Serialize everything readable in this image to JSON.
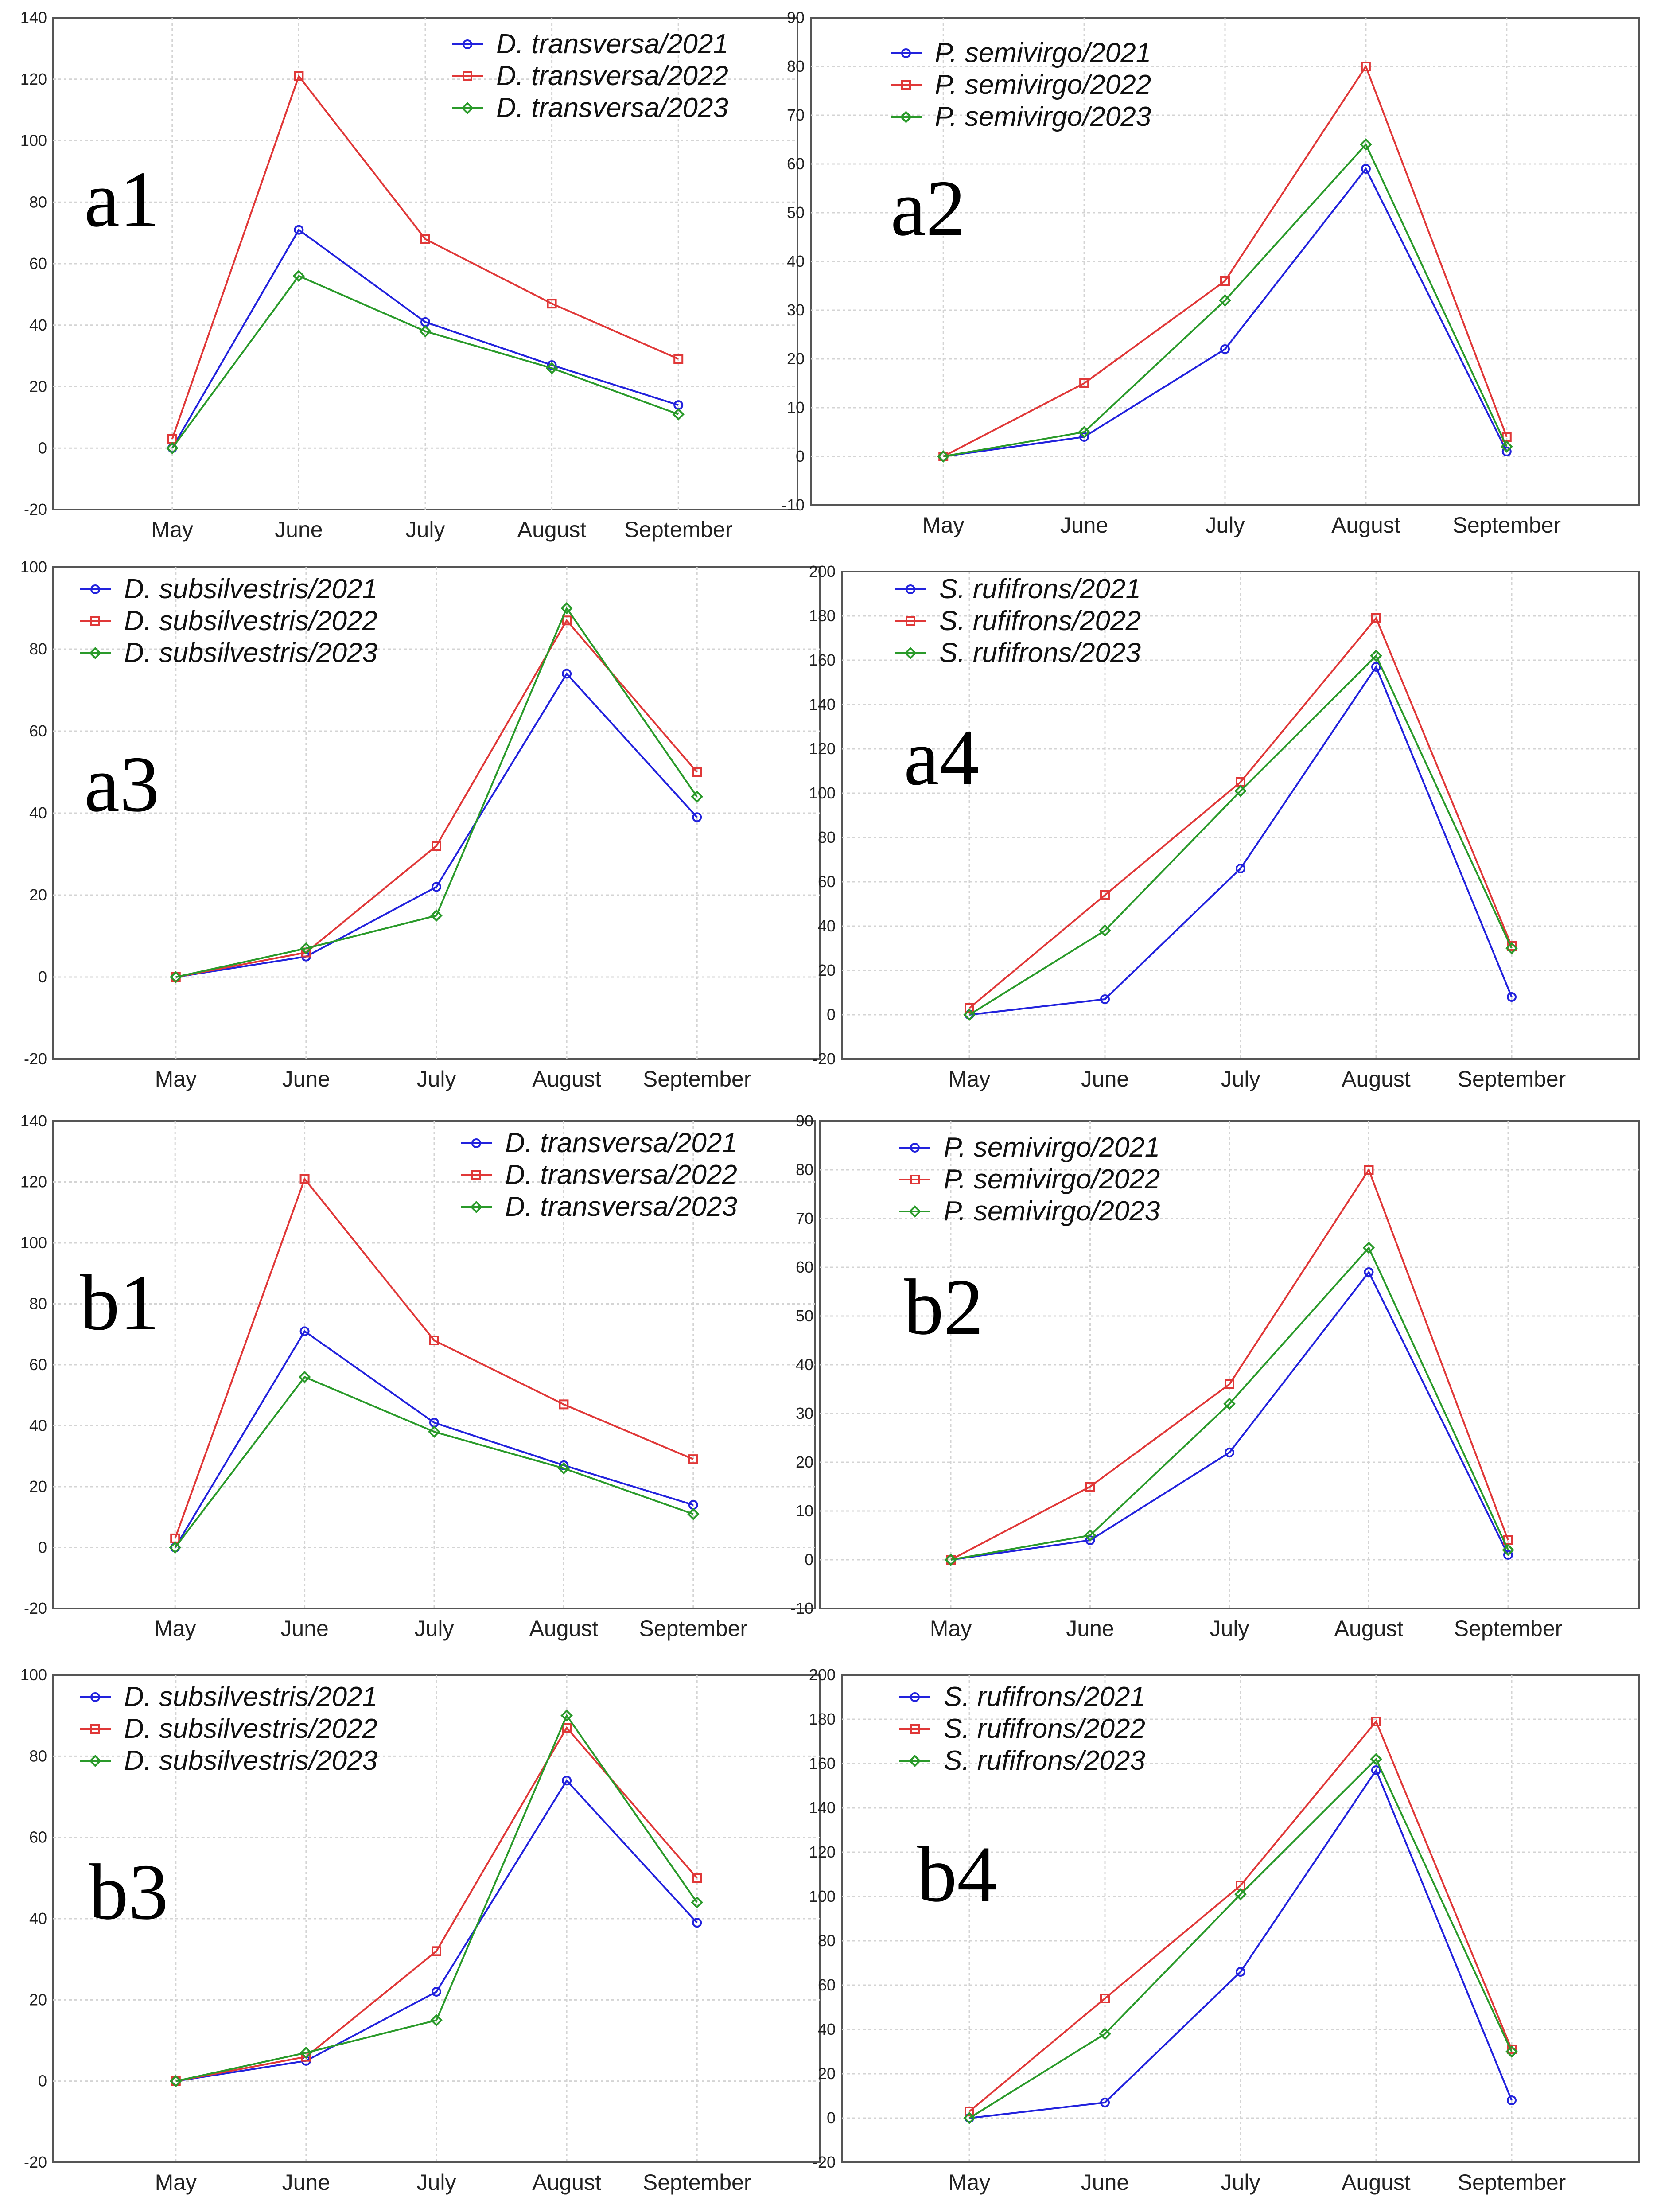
{
  "colors": {
    "y2021": "#2222dd",
    "y2022": "#e03838",
    "y2023": "#2a9a2a"
  },
  "chart_data": [
    {
      "label": "a1",
      "type": "line",
      "categories": [
        "May",
        "June",
        "July",
        "August",
        "September"
      ],
      "ylim": [
        -20,
        140
      ],
      "yticks": [
        -20,
        0,
        20,
        40,
        60,
        80,
        100,
        120,
        140
      ],
      "legend_position": "top-right",
      "series": [
        {
          "name": "D. transversa/2021",
          "year": "2021",
          "values": [
            0,
            71,
            41,
            27,
            14
          ]
        },
        {
          "name": "D. transversa/2022",
          "year": "2022",
          "values": [
            3,
            121,
            68,
            47,
            29
          ]
        },
        {
          "name": "D. transversa/2023",
          "year": "2023",
          "values": [
            0,
            56,
            38,
            26,
            11
          ]
        }
      ]
    },
    {
      "label": "a2",
      "type": "line",
      "categories": [
        "May",
        "June",
        "July",
        "August",
        "September"
      ],
      "ylim": [
        -10,
        90
      ],
      "yticks": [
        -10,
        0,
        10,
        20,
        30,
        40,
        50,
        60,
        70,
        80,
        90
      ],
      "legend_position": "top-left",
      "series": [
        {
          "name": "P. semivirgo/2021",
          "year": "2021",
          "values": [
            0,
            4,
            22,
            59,
            1
          ]
        },
        {
          "name": "P. semivirgo/2022",
          "year": "2022",
          "values": [
            0,
            15,
            36,
            80,
            4
          ]
        },
        {
          "name": "P. semivirgo/2023",
          "year": "2023",
          "values": [
            0,
            5,
            32,
            64,
            2
          ]
        }
      ]
    },
    {
      "label": "a3",
      "type": "line",
      "categories": [
        "May",
        "June",
        "July",
        "August",
        "September"
      ],
      "ylim": [
        -20,
        100
      ],
      "yticks": [
        -20,
        0,
        20,
        40,
        60,
        80,
        100
      ],
      "legend_position": "top-left",
      "series": [
        {
          "name": "D. subsilvestris/2021",
          "year": "2021",
          "values": [
            0,
            5,
            22,
            74,
            39
          ]
        },
        {
          "name": "D. subsilvestris/2022",
          "year": "2022",
          "values": [
            0,
            6,
            32,
            87,
            50
          ]
        },
        {
          "name": "D. subsilvestris/2023",
          "year": "2023",
          "values": [
            0,
            7,
            15,
            90,
            44
          ]
        }
      ]
    },
    {
      "label": "a4",
      "type": "line",
      "categories": [
        "May",
        "June",
        "July",
        "August",
        "September"
      ],
      "ylim": [
        -20,
        200
      ],
      "yticks": [
        -20,
        0,
        20,
        40,
        60,
        80,
        100,
        120,
        140,
        160,
        180,
        200
      ],
      "legend_position": "top-left",
      "series": [
        {
          "name": "S. rufifrons/2021",
          "year": "2021",
          "values": [
            0,
            7,
            66,
            157,
            8
          ]
        },
        {
          "name": "S. rufifrons/2022",
          "year": "2022",
          "values": [
            3,
            54,
            105,
            179,
            31
          ]
        },
        {
          "name": "S. rufifrons/2023",
          "year": "2023",
          "values": [
            0,
            38,
            101,
            162,
            30
          ]
        }
      ]
    },
    {
      "label": "b1",
      "type": "line",
      "categories": [
        "May",
        "June",
        "July",
        "August",
        "September"
      ],
      "ylim": [
        -20,
        140
      ],
      "yticks": [
        -20,
        0,
        20,
        40,
        60,
        80,
        100,
        120,
        140
      ],
      "legend_position": "top-right",
      "series": [
        {
          "name": "D. transversa/2021",
          "year": "2021",
          "values": [
            0,
            71,
            41,
            27,
            14
          ]
        },
        {
          "name": "D. transversa/2022",
          "year": "2022",
          "values": [
            3,
            121,
            68,
            47,
            29
          ]
        },
        {
          "name": "D. transversa/2023",
          "year": "2023",
          "values": [
            0,
            56,
            38,
            26,
            11
          ]
        }
      ]
    },
    {
      "label": "b2",
      "type": "line",
      "categories": [
        "May",
        "June",
        "July",
        "August",
        "September"
      ],
      "ylim": [
        -10,
        90
      ],
      "yticks": [
        -10,
        0,
        10,
        20,
        30,
        40,
        50,
        60,
        70,
        80,
        90
      ],
      "legend_position": "top-left",
      "series": [
        {
          "name": "P. semivirgo/2021",
          "year": "2021",
          "values": [
            0,
            4,
            22,
            59,
            1
          ]
        },
        {
          "name": "P. semivirgo/2022",
          "year": "2022",
          "values": [
            0,
            15,
            36,
            80,
            4
          ]
        },
        {
          "name": "P. semivirgo/2023",
          "year": "2023",
          "values": [
            0,
            5,
            32,
            64,
            2
          ]
        }
      ]
    },
    {
      "label": "b3",
      "type": "line",
      "categories": [
        "May",
        "June",
        "July",
        "August",
        "September"
      ],
      "ylim": [
        -20,
        100
      ],
      "yticks": [
        -20,
        0,
        20,
        40,
        60,
        80,
        100
      ],
      "legend_position": "top-left",
      "series": [
        {
          "name": "D. subsilvestris/2021",
          "year": "2021",
          "values": [
            0,
            5,
            22,
            74,
            39
          ]
        },
        {
          "name": "D. subsilvestris/2022",
          "year": "2022",
          "values": [
            0,
            6,
            32,
            87,
            50
          ]
        },
        {
          "name": "D. subsilvestris/2023",
          "year": "2023",
          "values": [
            0,
            7,
            15,
            90,
            44
          ]
        }
      ]
    },
    {
      "label": "b4",
      "type": "line",
      "categories": [
        "May",
        "June",
        "July",
        "August",
        "September"
      ],
      "ylim": [
        -20,
        200
      ],
      "yticks": [
        -20,
        0,
        20,
        40,
        60,
        80,
        100,
        120,
        140,
        160,
        180,
        200
      ],
      "legend_position": "top-left",
      "series": [
        {
          "name": "S. rufifrons/2021",
          "year": "2021",
          "values": [
            0,
            7,
            66,
            157,
            8
          ]
        },
        {
          "name": "S. rufifrons/2022",
          "year": "2022",
          "values": [
            3,
            54,
            105,
            179,
            31
          ]
        },
        {
          "name": "S. rufifrons/2023",
          "year": "2023",
          "values": [
            0,
            38,
            101,
            162,
            30
          ]
        }
      ]
    }
  ]
}
